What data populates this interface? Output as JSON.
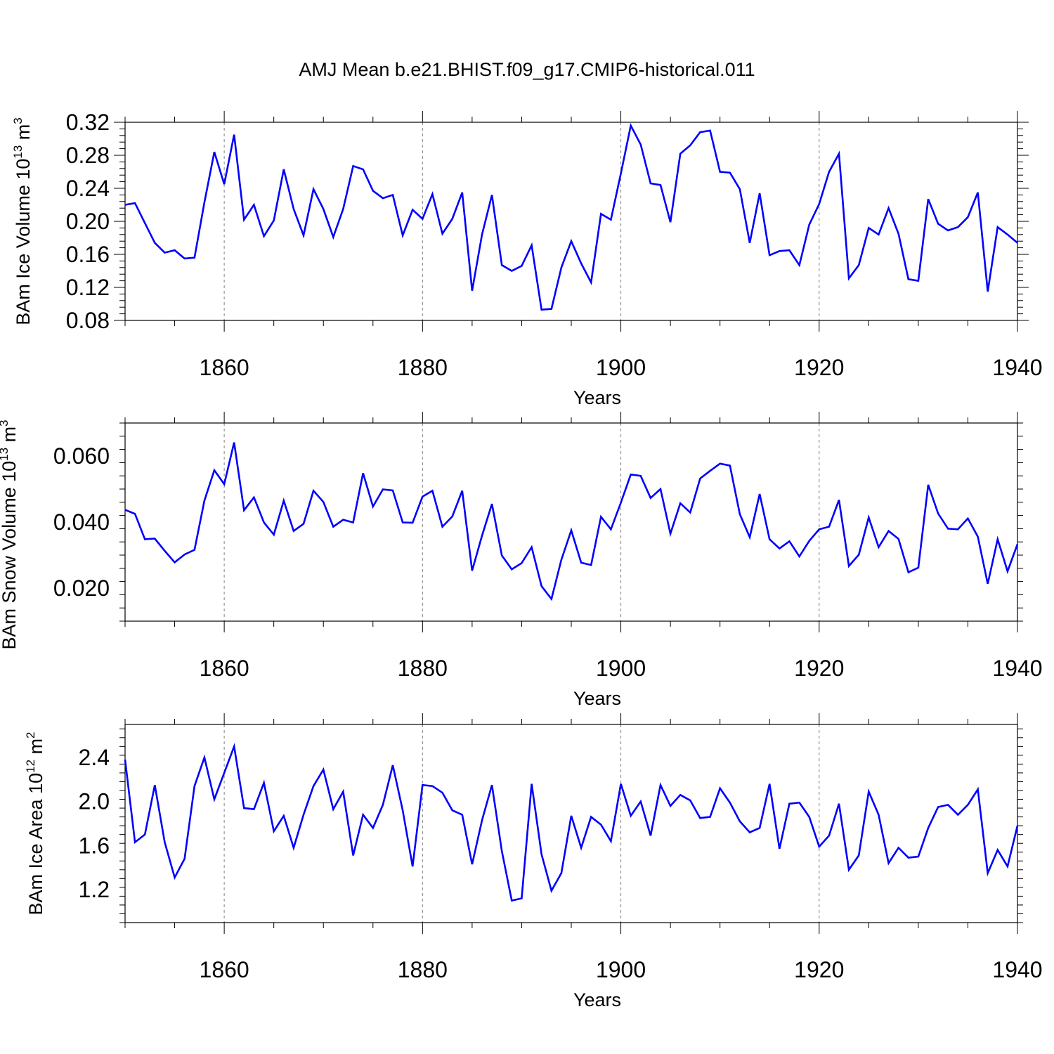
{
  "title": "AMJ Mean b.e21.BHIST.f09_g17.CMIP6-historical.011",
  "colors": {
    "line": "#0000ff",
    "axis": "#000000",
    "gridline": "#808080"
  },
  "chart_data": [
    {
      "type": "line",
      "xlabel": "Years",
      "ylabel": "BAm Ice Volume 10",
      "ylabel_exponent": "13",
      "ylabel_unit": "m",
      "ylabel_unit_exponent": "3",
      "xlim": [
        1850,
        1940
      ],
      "ylim": [
        0.08,
        0.32
      ],
      "x_ticks": [
        1860,
        1880,
        1900,
        1920,
        1940
      ],
      "y_ticks": [
        "0.08",
        "0.12",
        "0.16",
        "0.20",
        "0.24",
        "0.28",
        "0.32"
      ],
      "grid": "vertical dashed at labeled x ticks",
      "x": [
        1850,
        1851,
        1852,
        1853,
        1854,
        1855,
        1856,
        1857,
        1858,
        1859,
        1860,
        1861,
        1862,
        1863,
        1864,
        1865,
        1866,
        1867,
        1868,
        1869,
        1870,
        1871,
        1872,
        1873,
        1874,
        1875,
        1876,
        1877,
        1878,
        1879,
        1880,
        1881,
        1882,
        1883,
        1884,
        1885,
        1886,
        1887,
        1888,
        1889,
        1890,
        1891,
        1892,
        1893,
        1894,
        1895,
        1896,
        1897,
        1898,
        1899,
        1900,
        1901,
        1902,
        1903,
        1904,
        1905,
        1906,
        1907,
        1908,
        1909,
        1910,
        1911,
        1912,
        1913,
        1914,
        1915,
        1916,
        1917,
        1918,
        1919,
        1920,
        1921,
        1922,
        1923,
        1924,
        1925,
        1926,
        1927,
        1928,
        1929,
        1930,
        1931,
        1932,
        1933,
        1934,
        1935,
        1936,
        1937,
        1938,
        1939,
        1940
      ],
      "values": [
        0.22,
        0.222,
        0.198,
        0.174,
        0.162,
        0.165,
        0.155,
        0.156,
        0.223,
        0.284,
        0.245,
        0.305,
        0.202,
        0.22,
        0.182,
        0.201,
        0.263,
        0.215,
        0.183,
        0.239,
        0.215,
        0.181,
        0.215,
        0.267,
        0.263,
        0.237,
        0.228,
        0.232,
        0.183,
        0.214,
        0.203,
        0.233,
        0.185,
        0.203,
        0.235,
        0.116,
        0.184,
        0.232,
        0.147,
        0.14,
        0.146,
        0.171,
        0.093,
        0.094,
        0.144,
        0.176,
        0.149,
        0.126,
        0.209,
        0.202,
        0.258,
        0.316,
        0.293,
        0.246,
        0.244,
        0.199,
        0.282,
        0.292,
        0.308,
        0.31,
        0.26,
        0.259,
        0.239,
        0.174,
        0.234,
        0.159,
        0.164,
        0.165,
        0.147,
        0.196,
        0.221,
        0.26,
        0.282,
        0.131,
        0.147,
        0.192,
        0.184,
        0.216,
        0.185,
        0.13,
        0.128,
        0.227,
        0.197,
        0.189,
        0.193,
        0.205,
        0.235,
        0.115,
        0.193,
        0.184,
        0.174
      ]
    },
    {
      "type": "line",
      "xlabel": "Years",
      "ylabel": "BAm Snow Volume 10",
      "ylabel_exponent": "13",
      "ylabel_unit": "m",
      "ylabel_unit_exponent": "3",
      "xlim": [
        1850,
        1940
      ],
      "ylim": [
        0.01,
        0.07
      ],
      "x_ticks": [
        1860,
        1880,
        1900,
        1920,
        1940
      ],
      "y_ticks": [
        "0.020",
        "0.040",
        "0.060"
      ],
      "y_tick_values": [
        0.02,
        0.04,
        0.06
      ],
      "grid": "vertical dashed at labeled x ticks",
      "x": [
        1850,
        1851,
        1852,
        1853,
        1854,
        1855,
        1856,
        1857,
        1858,
        1859,
        1860,
        1861,
        1862,
        1863,
        1864,
        1865,
        1866,
        1867,
        1868,
        1869,
        1870,
        1871,
        1872,
        1873,
        1874,
        1875,
        1876,
        1877,
        1878,
        1879,
        1880,
        1881,
        1882,
        1883,
        1884,
        1885,
        1886,
        1887,
        1888,
        1889,
        1890,
        1891,
        1892,
        1893,
        1894,
        1895,
        1896,
        1897,
        1898,
        1899,
        1900,
        1901,
        1902,
        1903,
        1904,
        1905,
        1906,
        1907,
        1908,
        1909,
        1910,
        1911,
        1912,
        1913,
        1914,
        1915,
        1916,
        1917,
        1918,
        1919,
        1920,
        1921,
        1922,
        1923,
        1924,
        1925,
        1926,
        1927,
        1928,
        1929,
        1930,
        1931,
        1932,
        1933,
        1934,
        1935,
        1936,
        1937,
        1938,
        1939,
        1940
      ],
      "values": [
        0.0437,
        0.0425,
        0.0348,
        0.035,
        0.0313,
        0.0278,
        0.0302,
        0.0316,
        0.0465,
        0.0557,
        0.0515,
        0.0641,
        0.0436,
        0.0475,
        0.0399,
        0.0362,
        0.0465,
        0.0373,
        0.0395,
        0.0495,
        0.0461,
        0.0386,
        0.0407,
        0.0399,
        0.0548,
        0.0447,
        0.0499,
        0.0496,
        0.0399,
        0.0398,
        0.0477,
        0.0495,
        0.0386,
        0.0417,
        0.0495,
        0.0253,
        0.0359,
        0.0455,
        0.0299,
        0.0257,
        0.0276,
        0.0324,
        0.0206,
        0.0167,
        0.0286,
        0.0375,
        0.0277,
        0.027,
        0.0416,
        0.0378,
        0.0459,
        0.0544,
        0.054,
        0.0473,
        0.05,
        0.0365,
        0.0457,
        0.0429,
        0.0532,
        0.0555,
        0.0577,
        0.0571,
        0.0424,
        0.0354,
        0.0485,
        0.0348,
        0.032,
        0.0342,
        0.0296,
        0.0343,
        0.0378,
        0.0386,
        0.0467,
        0.0267,
        0.0301,
        0.0414,
        0.0324,
        0.0373,
        0.0349,
        0.0248,
        0.0262,
        0.0513,
        0.0426,
        0.038,
        0.0378,
        0.0411,
        0.0356,
        0.0213,
        0.0348,
        0.0251,
        0.0333
      ]
    },
    {
      "type": "line",
      "xlabel": "Years",
      "ylabel": "BAm Ice Area 10",
      "ylabel_exponent": "12",
      "ylabel_unit": "m",
      "ylabel_unit_exponent": "2",
      "xlim": [
        1850,
        1940
      ],
      "ylim": [
        0.9,
        2.7
      ],
      "x_ticks": [
        1860,
        1880,
        1900,
        1920,
        1940
      ],
      "y_ticks": [
        "1.2",
        "1.6",
        "2.0",
        "2.4"
      ],
      "y_tick_values": [
        1.2,
        1.6,
        2.0,
        2.4
      ],
      "grid": "vertical dashed at labeled x ticks",
      "x": [
        1850,
        1851,
        1852,
        1853,
        1854,
        1855,
        1856,
        1857,
        1858,
        1859,
        1860,
        1861,
        1862,
        1863,
        1864,
        1865,
        1866,
        1867,
        1868,
        1869,
        1870,
        1871,
        1872,
        1873,
        1874,
        1875,
        1876,
        1877,
        1878,
        1879,
        1880,
        1881,
        1882,
        1883,
        1884,
        1885,
        1886,
        1887,
        1888,
        1889,
        1890,
        1891,
        1892,
        1893,
        1894,
        1895,
        1896,
        1897,
        1898,
        1899,
        1900,
        1901,
        1902,
        1903,
        1904,
        1905,
        1906,
        1907,
        1908,
        1909,
        1910,
        1911,
        1912,
        1913,
        1914,
        1915,
        1916,
        1917,
        1918,
        1919,
        1920,
        1921,
        1922,
        1923,
        1924,
        1925,
        1926,
        1927,
        1928,
        1929,
        1930,
        1931,
        1932,
        1933,
        1934,
        1935,
        1936,
        1937,
        1938,
        1939,
        1940
      ],
      "values": [
        2.38,
        1.63,
        1.7,
        2.15,
        1.63,
        1.31,
        1.48,
        2.14,
        2.4,
        2.02,
        2.26,
        2.5,
        1.94,
        1.93,
        2.17,
        1.73,
        1.87,
        1.58,
        1.88,
        2.14,
        2.29,
        1.93,
        2.09,
        1.51,
        1.88,
        1.76,
        1.97,
        2.33,
        1.92,
        1.41,
        2.15,
        2.14,
        2.08,
        1.92,
        1.88,
        1.43,
        1.83,
        2.15,
        1.55,
        1.1,
        1.12,
        2.16,
        1.52,
        1.19,
        1.35,
        1.87,
        1.58,
        1.86,
        1.79,
        1.64,
        2.16,
        1.87,
        2.0,
        1.69,
        2.15,
        1.96,
        2.06,
        2.01,
        1.85,
        1.86,
        2.12,
        1.99,
        1.82,
        1.72,
        1.76,
        2.16,
        1.57,
        1.98,
        1.99,
        1.86,
        1.59,
        1.69,
        1.98,
        1.38,
        1.51,
        2.09,
        1.88,
        1.44,
        1.58,
        1.49,
        1.5,
        1.76,
        1.95,
        1.97,
        1.88,
        1.97,
        2.11,
        1.35,
        1.56,
        1.41,
        1.78
      ]
    }
  ]
}
